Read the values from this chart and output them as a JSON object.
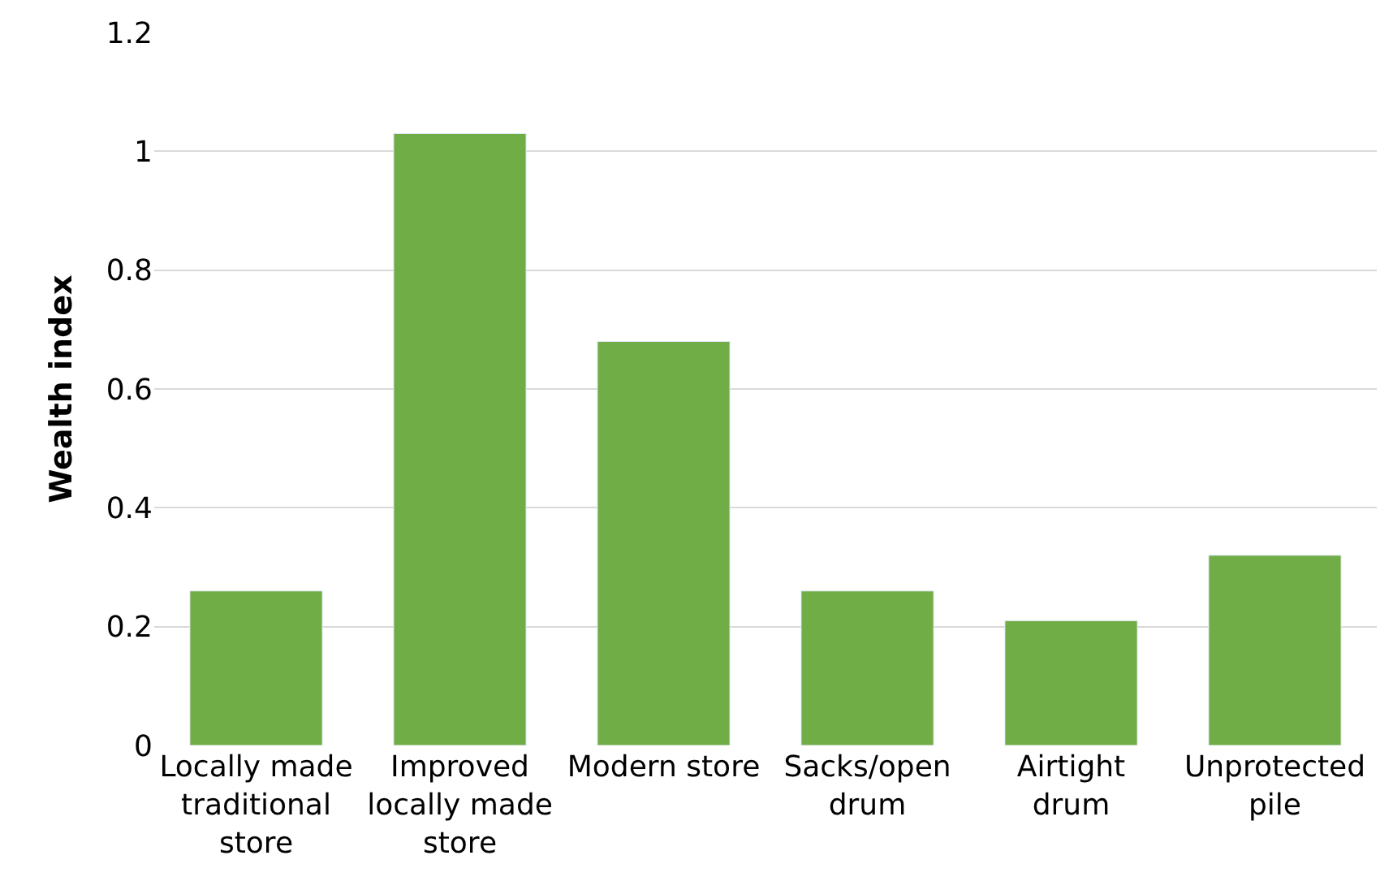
{
  "chart_data": {
    "type": "bar",
    "ylabel": "Wealth index",
    "categories": [
      "Locally made traditional store",
      "Improved locally made store",
      "Modern store",
      "Sacks/open drum",
      "Airtight drum",
      "Unprotected pile"
    ],
    "values": [
      0.26,
      1.03,
      0.68,
      0.26,
      0.21,
      0.32
    ],
    "color": "#70ad47",
    "ylim": [
      0,
      1.2
    ],
    "yticks": [
      0,
      0.2,
      0.4,
      0.6,
      0.8,
      1,
      1.2
    ],
    "grid": "y"
  }
}
